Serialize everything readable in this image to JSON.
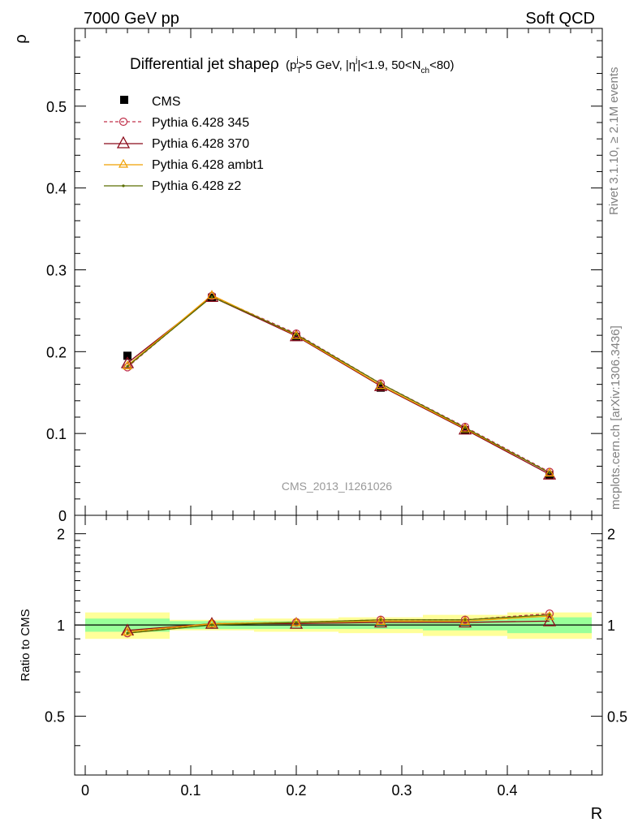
{
  "header": {
    "left": "7000 GeV pp",
    "right": "Soft QCD"
  },
  "side": {
    "rivet": "Rivet 3.1.10, ≥ 2.1M events",
    "mcplots": "mcplots.cern.ch [arXiv:1306.3436]"
  },
  "chart_data": {
    "type": "line",
    "title": "Differential jet shapeρ (p_T^j>5 GeV, |η^j|<1.9, 50<N_ch<80)",
    "title_main": "Differential jet shapeρ",
    "title_paren": "(p",
    "title_sub_T": "T",
    "title_sup_j": "j",
    "title_mid": ">5 GeV, |η",
    "title_sup_j2": "j",
    "title_mid2": "|<1.9, 50<N",
    "title_sub_ch": "ch",
    "title_end": "<80)",
    "watermark": "CMS_2013_I1261026",
    "xlabel": "R",
    "ylabel": "ρ",
    "ratio_ylabel": "Ratio to CMS",
    "xlim": [
      -0.01,
      0.49
    ],
    "ylim": [
      0,
      0.595
    ],
    "ratio_ylim": [
      0.32,
      2.3
    ],
    "x_ticks": [
      "0",
      "0.1",
      "0.2",
      "0.3",
      "0.4"
    ],
    "y_ticks": [
      "0",
      "0.1",
      "0.2",
      "0.3",
      "0.4",
      "0.5"
    ],
    "ratio_y_ticks": [
      "0.5",
      "1",
      "2"
    ],
    "x": [
      0.04,
      0.12,
      0.2,
      0.28,
      0.36,
      0.44
    ],
    "bin_edges": [
      0.0,
      0.08,
      0.16,
      0.24,
      0.32,
      0.4,
      0.48
    ],
    "data": {
      "name": "CMS",
      "values": [
        0.195,
        0.266,
        0.218,
        0.156,
        0.104,
        0.049
      ],
      "band_inner": [
        0.05,
        0.03,
        0.03,
        0.03,
        0.04,
        0.06
      ],
      "band_outer": [
        0.1,
        0.04,
        0.05,
        0.06,
        0.08,
        0.1
      ]
    },
    "series": [
      {
        "name": "Pythia 6.428 345",
        "color": "#c0304a",
        "dash": "4,3",
        "marker": "circle-open",
        "values": [
          0.181,
          0.268,
          0.222,
          0.161,
          0.108,
          0.053
        ],
        "ratio": [
          0.94,
          1.01,
          1.02,
          1.04,
          1.04,
          1.09
        ]
      },
      {
        "name": "Pythia 6.428 370",
        "color": "#8b0a1a",
        "dash": "",
        "marker": "triangle-open",
        "values": [
          0.186,
          0.267,
          0.219,
          0.158,
          0.105,
          0.05
        ],
        "ratio": [
          0.96,
          1.01,
          1.01,
          1.02,
          1.02,
          1.03
        ]
      },
      {
        "name": "Pythia 6.428 ambt1",
        "color": "#f0a000",
        "dash": "",
        "marker": "triangle-open",
        "values": [
          0.183,
          0.269,
          0.22,
          0.159,
          0.106,
          0.052
        ],
        "ratio": [
          0.95,
          1.01,
          1.02,
          1.03,
          1.03,
          1.07
        ]
      },
      {
        "name": "Pythia 6.428 z2",
        "color": "#5a6e00",
        "dash": "",
        "marker": "dot",
        "values": [
          0.182,
          0.267,
          0.221,
          0.161,
          0.107,
          0.052
        ],
        "ratio": [
          0.94,
          1.0,
          1.02,
          1.04,
          1.04,
          1.08
        ]
      }
    ]
  }
}
